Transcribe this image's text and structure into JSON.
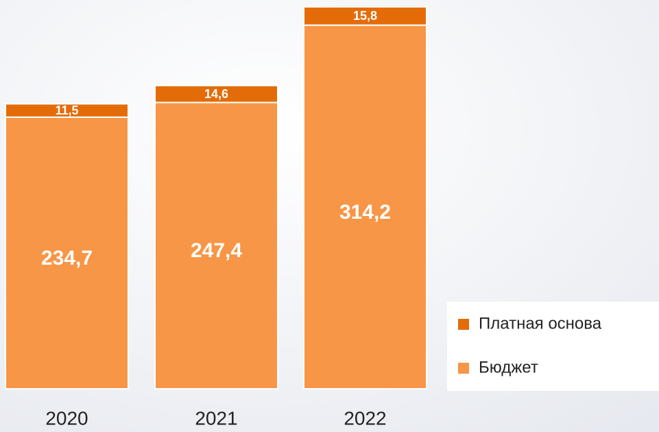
{
  "chart_data": {
    "type": "stacked_bar",
    "categories": [
      "2020",
      "2021",
      "2022"
    ],
    "series": [
      {
        "name": "Бюджет",
        "color": "#f79646",
        "values": [
          234.7,
          247.4,
          314.2
        ],
        "value_labels": [
          "234,7",
          "247,4",
          "314,2"
        ]
      },
      {
        "name": "Платная основа",
        "color": "#e36c09",
        "values": [
          11.5,
          14.6,
          15.8
        ],
        "value_labels": [
          "11,5",
          "14,6",
          "15,8"
        ]
      }
    ],
    "legend": "right"
  }
}
